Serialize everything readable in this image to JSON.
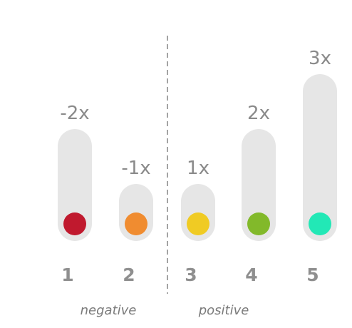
{
  "items": [
    {
      "rank": "1",
      "multiplier": "-2x",
      "value": -2,
      "color": "#c0192e"
    },
    {
      "rank": "2",
      "multiplier": "-1x",
      "value": -1,
      "color": "#f08c30"
    },
    {
      "rank": "3",
      "multiplier": "1x",
      "value": 1,
      "color": "#f0cb23"
    },
    {
      "rank": "4",
      "multiplier": "2x",
      "value": 2,
      "color": "#82b92a"
    },
    {
      "rank": "5",
      "multiplier": "3x",
      "value": 3,
      "color": "#22e8b6"
    }
  ],
  "groups": {
    "negative": "negative",
    "positive": "positive"
  },
  "colors": {
    "track": "#e6e6e6",
    "text": "#8a8a8a",
    "divider": "#666666"
  }
}
